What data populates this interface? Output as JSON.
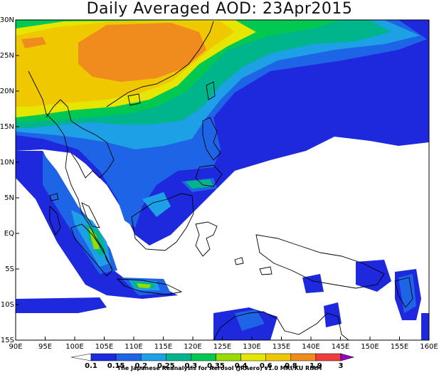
{
  "title": "Daily Averaged AOD: 23Apr2015",
  "credit": "The Japanese Reanalysis for Aerosol (JRAero) v1.0 MRI/KU RIAM",
  "axes": {
    "lon_range": [
      90,
      160
    ],
    "lat_range": [
      -15,
      30
    ],
    "lon_ticks": [
      "90E",
      "95E",
      "100E",
      "105E",
      "110E",
      "115E",
      "120E",
      "125E",
      "130E",
      "135E",
      "140E",
      "145E",
      "150E",
      "155E",
      "160E"
    ],
    "lat_ticks": [
      "30N",
      "25N",
      "20N",
      "15N",
      "10N",
      "5N",
      "EQ",
      "5S",
      "10S",
      "15S"
    ]
  },
  "colorbar": {
    "labels": [
      "0.1",
      "0.15",
      "0.2",
      "0.25",
      "0.3",
      "0.35",
      "0.4",
      "0.6",
      "0.8",
      "1.9",
      "3"
    ],
    "colors": [
      "#1e28dc",
      "#1e64e6",
      "#1ea0e6",
      "#00b48c",
      "#00c850",
      "#96dc00",
      "#e6e600",
      "#f0c800",
      "#f08c1e",
      "#f03c3c",
      "#9600c8"
    ]
  },
  "legend_colors": {
    "land_border": "#000000",
    "no_data": "#ffffff"
  }
}
